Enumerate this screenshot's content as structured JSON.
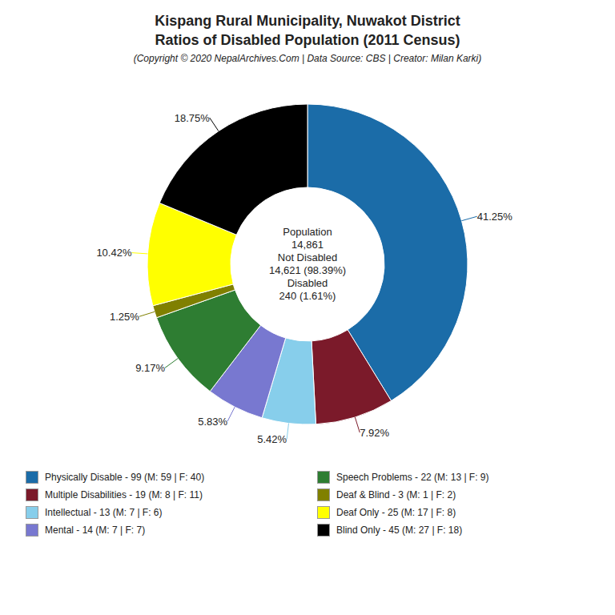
{
  "chart_data": {
    "type": "pie",
    "title": "Kispang Rural Municipality, Nuwakot District\nRatios of Disabled Population (2011 Census)",
    "subtitle": "(Copyright © 2020 NepalArchives.Com | Data Source: CBS | Creator: Milan Karki)",
    "categories": [
      "Physically Disable - 99 (M: 59 | F: 40)",
      "Multiple Disabilities - 19 (M: 8 | F: 11)",
      "Intellectual - 13 (M: 7 | F: 6)",
      "Mental - 14 (M: 7 | F: 7)",
      "Speech Problems - 22 (M: 13 | F: 9)",
      "Deaf & Blind - 3 (M: 1 | F: 2)",
      "Deaf Only - 25 (M: 17 | F: 8)",
      "Blind Only - 45 (M: 27 | F: 18)"
    ],
    "values": [
      41.25,
      7.92,
      5.42,
      5.83,
      9.17,
      1.25,
      10.42,
      18.75
    ],
    "value_labels": [
      "41.25%",
      "7.92%",
      "5.42%",
      "5.83%",
      "9.17%",
      "1.25%",
      "10.42%",
      "18.75%"
    ],
    "colors": [
      "#1b6ca8",
      "#7b1a2a",
      "#87ceeb",
      "#7878d0",
      "#2e7d32",
      "#808000",
      "#ffff00",
      "#000000"
    ],
    "data_labels": true,
    "legend": "bottom",
    "annotations": [
      "Population",
      "14,861",
      "Not Disabled",
      "14,621 (98.39%)",
      "Disabled",
      "240 (1.61%)"
    ]
  }
}
